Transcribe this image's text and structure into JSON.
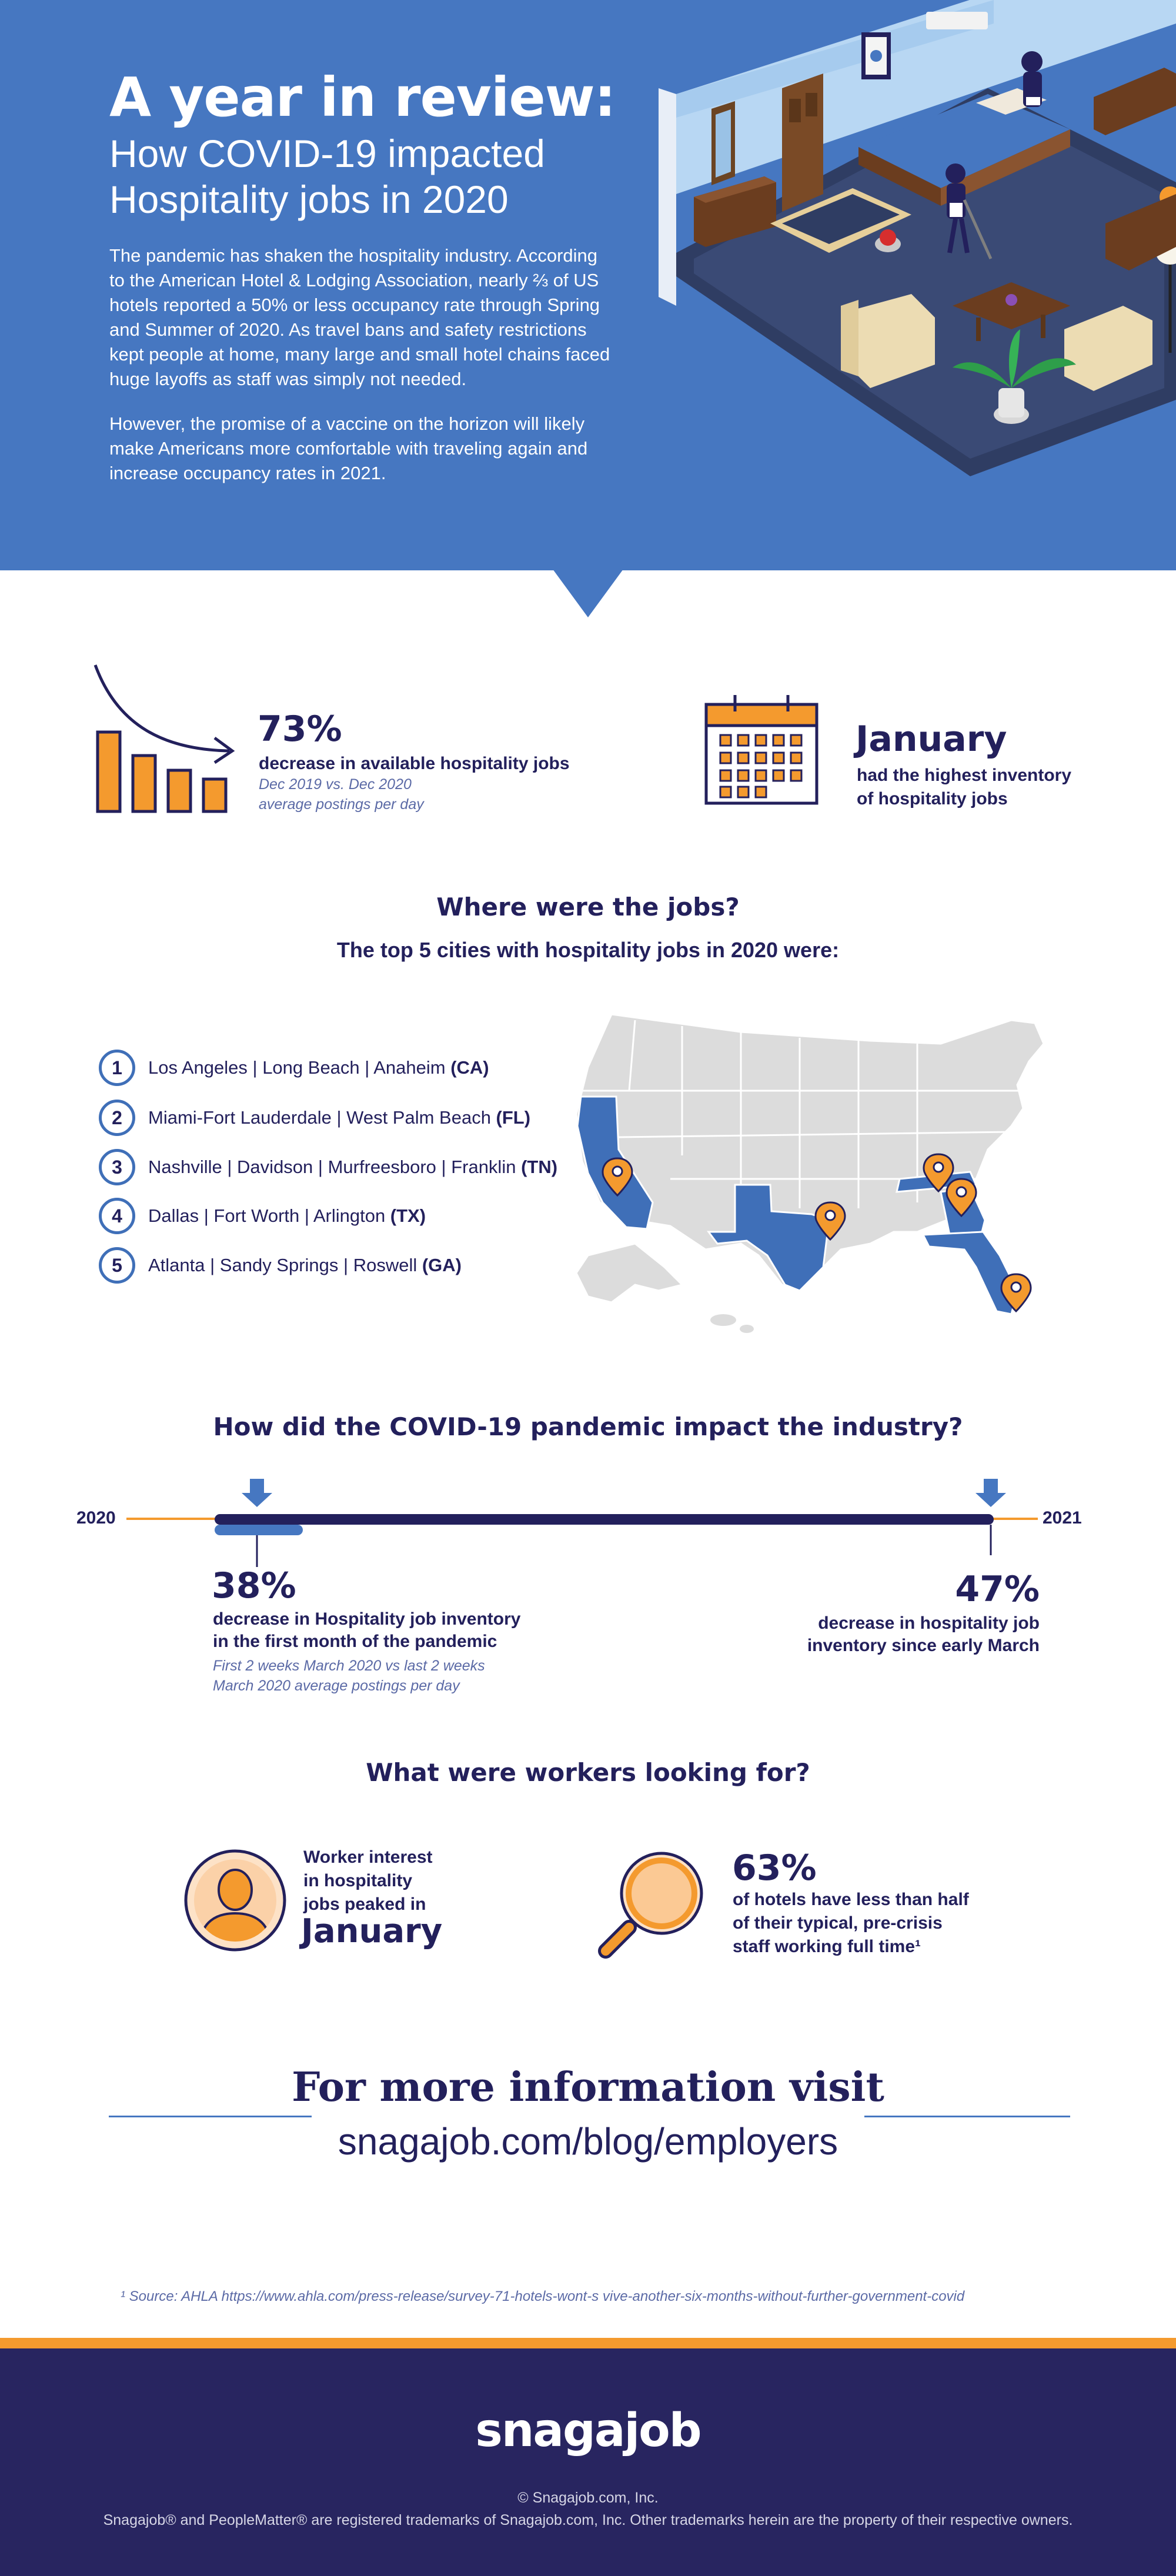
{
  "hero": {
    "title": "A year in review:",
    "subtitle": "How COVID-19 impacted Hospitality jobs in 2020",
    "para1": "The pandemic has shaken the hospitality industry. According to the American Hotel & Lodging Association, nearly ⅔ of US hotels reported a 50% or less occupancy rate through Spring and Summer of 2020. As travel bans and safety restrictions kept people at home, many large and small hotel chains faced huge layoffs as staff was simply not needed.",
    "para2": "However, the promise of a vaccine on the horizon will likely make Americans more comfortable with traveling again and increase occupancy rates in 2021."
  },
  "stats": {
    "decrease": {
      "value": "73%",
      "label": "decrease in available hospitality jobs",
      "note1": "Dec 2019 vs. Dec 2020",
      "note2": "average postings per day"
    },
    "inventory": {
      "value": "January",
      "label1": "had the highest inventory",
      "label2": "of hospitality jobs"
    }
  },
  "jobs": {
    "heading": "Where were the jobs?",
    "subheading": "The top 5 cities with hospitality jobs in 2020 were:",
    "cities": [
      {
        "num": "1",
        "name": "Los Angeles | Long Beach | Anaheim ",
        "state": "(CA)"
      },
      {
        "num": "2",
        "name": "Miami-Fort Lauderdale | West Palm Beach ",
        "state": "(FL)"
      },
      {
        "num": "3",
        "name": "Nashville | Davidson | Murfreesboro | Franklin ",
        "state": "(TN)"
      },
      {
        "num": "4",
        "name": "Dallas | Fort Worth | Arlington ",
        "state": "(TX)"
      },
      {
        "num": "5",
        "name": "Atlanta | Sandy Springs | Roswell ",
        "state": "(GA)"
      }
    ]
  },
  "impact": {
    "heading": "How did the COVID-19 pandemic impact the industry?",
    "start_year": "2020",
    "end_year": "2021",
    "left": {
      "value": "38%",
      "line1": "decrease in Hospitality job inventory",
      "line2": "in the first month of the pandemic",
      "note1": "First 2 weeks March 2020 vs last 2 weeks",
      "note2": "March 2020 average postings per day"
    },
    "right": {
      "value": "47%",
      "line1": "decrease in hospitality job",
      "line2": "inventory since early March"
    }
  },
  "workers": {
    "heading": "What were workers looking for?",
    "interest": {
      "line1": "Worker interest",
      "line2": "in hospitality",
      "line3": "jobs peaked in",
      "value": "January"
    },
    "hotels": {
      "value": "63%",
      "line1": "of hotels have less than half",
      "line2": "of their typical, pre-crisis",
      "line3": "staff working full time¹"
    }
  },
  "cta": {
    "line1": "For more information visit",
    "line2": "snagajob.com/blog/employers"
  },
  "source": "¹ Source: AHLA https://www.ahla.com/press-release/survey-71-hotels-wont-s vive-another-six-months-without-further-government-covid",
  "footer": {
    "logo": "snagajob",
    "copyright": "© Snagajob.com, Inc.",
    "trademark": "Snagajob® and PeopleMatter® are registered trademarks of Snagajob.com, Inc. Other trademarks herein are the property of their respective owners."
  },
  "colors": {
    "hero_blue": "#4677c1",
    "navy": "#23205c",
    "orange": "#f49a2e",
    "map_grey": "#dcdcdc",
    "map_highlight": "#3f6fb8"
  },
  "icons": [
    "declining-bar-chart-icon",
    "calendar-icon",
    "map-pin-icon",
    "down-arrow-icon",
    "person-icon",
    "magnifier-icon"
  ]
}
